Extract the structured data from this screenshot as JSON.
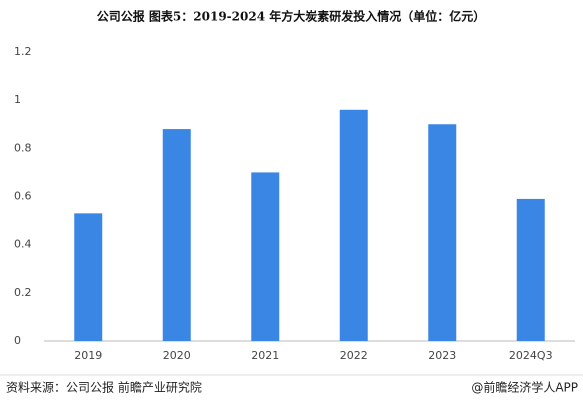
{
  "chart_data": {
    "type": "bar",
    "title": "公司公报  图表5：2019-2024 年方大炭素研发投入情况（单位：亿元）",
    "categories": [
      "2019",
      "2020",
      "2021",
      "2022",
      "2023",
      "2024Q3"
    ],
    "values": [
      0.53,
      0.88,
      0.7,
      0.96,
      0.9,
      0.59
    ],
    "color": "#3a86e4",
    "ylim": [
      0,
      1.2
    ],
    "yticks": [
      0,
      0.2,
      0.4,
      0.6,
      0.8,
      1,
      1.2
    ],
    "grid": false,
    "source": "资料来源：公司公报 前瞻产业研究院",
    "credit": "@前瞻经济学人APP"
  }
}
